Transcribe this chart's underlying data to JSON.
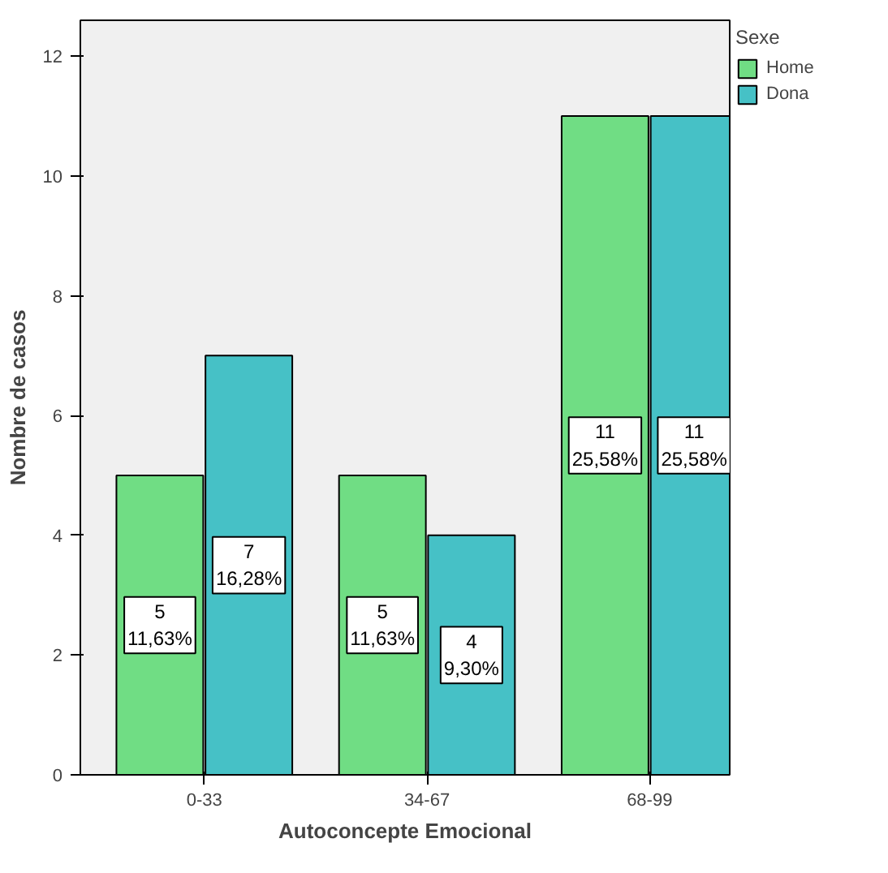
{
  "chart_data": {
    "type": "bar",
    "xlabel": "Autoconcepte Emocional",
    "ylabel": "Nombre de casos",
    "legend_title": "Sexe",
    "categories": [
      "0-33",
      "34-67",
      "68-99"
    ],
    "series": [
      {
        "name": "Home",
        "color": "#70dd84",
        "values": [
          5,
          5,
          11
        ],
        "value_labels": [
          "5\n11,63%",
          "5\n11,63%",
          "11\n25,58%"
        ]
      },
      {
        "name": "Dona",
        "color": "#46c1c6",
        "values": [
          7,
          4,
          11
        ],
        "value_labels": [
          "7\n16,28%",
          "4\n9,30%",
          "11\n25,58%"
        ]
      }
    ],
    "ylim": [
      0,
      12.6
    ],
    "yticks": [
      0,
      2,
      4,
      6,
      8,
      10,
      12
    ],
    "grid": false,
    "legend": "top right"
  }
}
